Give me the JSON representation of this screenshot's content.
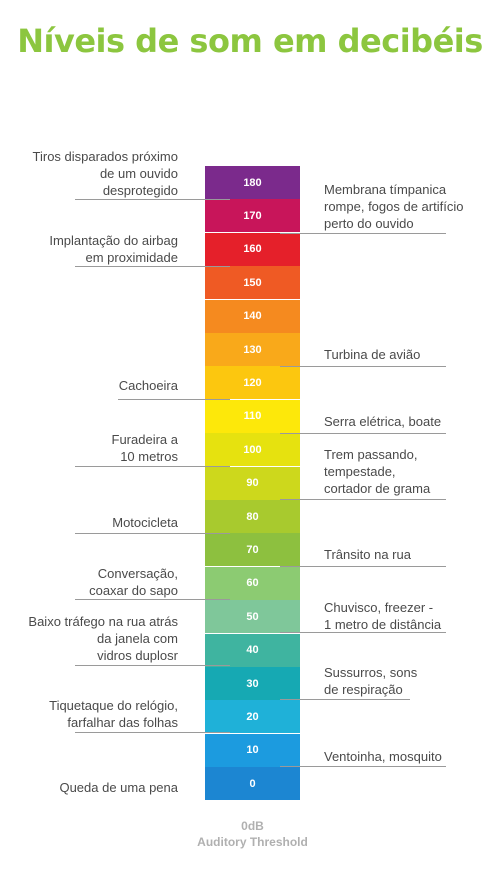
{
  "title": "Níveis de som em decibéis",
  "title_color": "#8cc63f",
  "scale": [
    {
      "value": "180",
      "color": "#7b2a8c"
    },
    {
      "value": "170",
      "color": "#c8155a"
    },
    {
      "value": "160",
      "color": "#e5202a"
    },
    {
      "value": "150",
      "color": "#ef5a24"
    },
    {
      "value": "140",
      "color": "#f58a1f"
    },
    {
      "value": "130",
      "color": "#f9a91a"
    },
    {
      "value": "120",
      "color": "#fcc70f"
    },
    {
      "value": "110",
      "color": "#fde80a"
    },
    {
      "value": "100",
      "color": "#e6e20f"
    },
    {
      "value": "90",
      "color": "#cdd81c"
    },
    {
      "value": "80",
      "color": "#a8ca2e"
    },
    {
      "value": "70",
      "color": "#8dc03f"
    },
    {
      "value": "60",
      "color": "#8ccb72"
    },
    {
      "value": "50",
      "color": "#7fc79a"
    },
    {
      "value": "40",
      "color": "#3fb4a0"
    },
    {
      "value": "30",
      "color": "#16a9b3"
    },
    {
      "value": "20",
      "color": "#1fb1d8"
    },
    {
      "value": "10",
      "color": "#1c9bdf"
    },
    {
      "value": "0",
      "color": "#1c86d2"
    }
  ],
  "left_labels": [
    "Tiros disparados próximo\nde um ouvido\ndesprotegido",
    "Implantação do airbag\nem proximidade",
    "Cachoeira",
    "Furadeira a\n10 metros",
    "Motocicleta",
    "Conversação,\ncoaxar do sapo",
    "Baixo tráfego na rua atrás\nda janela com\nvidros duplosr",
    "Tiquetaque do relógio,\nfarfalhar das folhas",
    "Queda de uma pena"
  ],
  "right_labels": [
    "Membrana tímpanica\nrompe, fogos de artifício\nperto do ouvido",
    "Turbina de avião",
    "Serra elétrica, boate",
    "Trem passando,\ntempestade,\ncortador de grama",
    "Trânsito na rua",
    "Chuvisco, freezer -\n1 metro de distância",
    "Sussurros, sons\nde respiração",
    "Ventoinha, mosquito"
  ],
  "footer": {
    "value": "0dB",
    "caption": "Auditory Threshold"
  }
}
